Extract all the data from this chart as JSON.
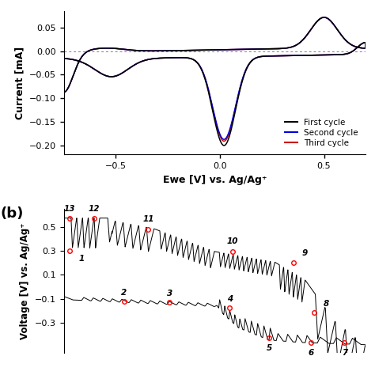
{
  "panel_a": {
    "xlabel": "Ewe [V] vs. Ag/Ag⁺",
    "ylabel": "Current [mA]",
    "ylim": [
      -0.22,
      0.085
    ],
    "xlim": [
      -0.75,
      0.7
    ],
    "yticks": [
      -0.2,
      -0.15,
      -0.1,
      -0.05,
      0,
      0.05
    ],
    "xticks": [
      -0.5,
      0,
      0.5
    ],
    "colors": {
      "first": "#000000",
      "second": "#0000dd",
      "third": "#cc0000"
    },
    "legend": [
      "First cycle",
      "Second cycle",
      "Third cycle"
    ]
  },
  "panel_b": {
    "ylabel": "Voltage [V] vs. Ag/Ag⁺",
    "ylim": [
      -0.55,
      0.65
    ],
    "xlim": [
      0,
      100
    ],
    "yticks": [
      -0.3,
      -0.1,
      0.1,
      0.3,
      0.5
    ],
    "label_b": "(b)",
    "upper_pts": [
      [
        2,
        0.57,
        "13"
      ],
      [
        10,
        0.57,
        "12"
      ],
      [
        28,
        0.48,
        "11"
      ],
      [
        56,
        0.295,
        "10"
      ],
      [
        76,
        0.2,
        "9"
      ]
    ],
    "lower_pts": [
      [
        2,
        0.3,
        "1"
      ],
      [
        20,
        -0.125,
        "2"
      ],
      [
        35,
        -0.13,
        "3"
      ],
      [
        55,
        -0.175,
        "4"
      ],
      [
        68,
        -0.43,
        "5"
      ],
      [
        82,
        -0.47,
        "6"
      ],
      [
        93,
        -0.47,
        "7"
      ],
      [
        83,
        -0.215,
        "8"
      ]
    ]
  }
}
